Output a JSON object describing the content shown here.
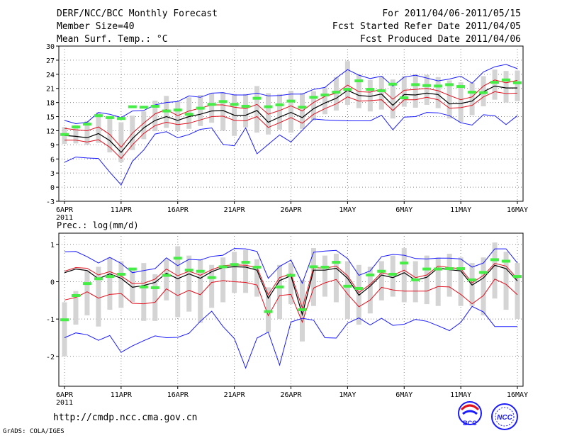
{
  "header": {
    "title": "DERF/NCC/BCC Monthly Forecast",
    "member": "Member Size=40",
    "variable": "Mean Surf. Temp.: °C",
    "period": "For 2011/04/06-2011/05/15",
    "started": "Fcst Started Refer Date 2011/04/05",
    "produced": "Fcst Produced Date 2011/04/06"
  },
  "footer": {
    "url": "http://cmdp.ncc.cma.gov.cn",
    "grads": "GrADS: COLA/IGES",
    "logo_bcc": "BCC",
    "logo_ncc": "NCC"
  },
  "colors": {
    "max": "#1a1aff",
    "min": "#1a1aff",
    "upper": "#e0101e",
    "lower": "#e0101e",
    "mean": "#000000",
    "box": "#d4d4d4",
    "obs": "#44ee44"
  },
  "chart_data": [
    {
      "type": "line",
      "title": "Mean Surf. Temp.: °C",
      "ylim": [
        -3,
        30
      ],
      "yticks": [
        -3,
        0,
        3,
        6,
        9,
        12,
        15,
        18,
        21,
        24,
        27,
        30
      ],
      "xticks": [
        {
          "day": 1,
          "label": "6APR",
          "sub": "2011"
        },
        {
          "day": 6,
          "label": "11APR"
        },
        {
          "day": 11,
          "label": "16APR"
        },
        {
          "day": 16,
          "label": "21APR"
        },
        {
          "day": 21,
          "label": "26APR"
        },
        {
          "day": 26,
          "label": "1MAY"
        },
        {
          "day": 31,
          "label": "6MAY"
        },
        {
          "day": 36,
          "label": "11MAY"
        },
        {
          "day": 41,
          "label": "16MAY"
        }
      ],
      "series": [
        {
          "name": "max",
          "values": [
            14.2,
            13.5,
            13.8,
            15.9,
            15.5,
            14.8,
            16.2,
            16.3,
            17.5,
            18.0,
            18.2,
            19.4,
            19.1,
            20.0,
            20.1,
            19.6,
            19.6,
            20.0,
            19.4,
            19.5,
            19.8,
            19.8,
            20.8,
            21.2,
            23.2,
            25.0,
            23.8,
            23.1,
            23.6,
            21.5,
            23.4,
            23.8,
            23.2,
            22.6,
            23.0,
            23.6,
            22.1,
            24.5,
            25.6,
            26.1,
            25.2
          ]
        },
        {
          "name": "upper",
          "values": [
            12.5,
            12.2,
            12.0,
            12.8,
            11.2,
            8.5,
            11.5,
            13.6,
            15.6,
            16.5,
            15.2,
            16.2,
            16.8,
            17.5,
            17.5,
            17.0,
            16.7,
            17.6,
            15.5,
            16.3,
            17.3,
            16.2,
            18.0,
            19.3,
            20.0,
            21.7,
            20.3,
            20.2,
            20.8,
            18.7,
            20.6,
            20.8,
            21.0,
            20.5,
            19.5,
            18.6,
            19.2,
            21.5,
            22.8,
            22.2,
            22.7
          ]
        },
        {
          "name": "mean",
          "values": [
            11.0,
            10.8,
            10.5,
            11.4,
            9.9,
            7.4,
            10.3,
            12.6,
            14.2,
            15.0,
            14.2,
            15.0,
            15.5,
            16.2,
            16.3,
            15.3,
            15.3,
            16.3,
            13.8,
            14.9,
            15.9,
            14.8,
            16.7,
            17.9,
            18.9,
            20.6,
            19.5,
            19.3,
            19.8,
            17.4,
            19.7,
            19.6,
            20.0,
            19.7,
            17.7,
            17.8,
            18.3,
            20.3,
            21.5,
            21.1,
            21.1
          ]
        },
        {
          "name": "lower",
          "values": [
            10.0,
            10.0,
            9.6,
            10.1,
            8.5,
            6.1,
            9.0,
            11.4,
            13.1,
            13.8,
            13.3,
            13.6,
            14.3,
            15.0,
            15.1,
            14.2,
            14.1,
            15.0,
            12.7,
            13.7,
            14.8,
            13.6,
            15.5,
            16.7,
            17.7,
            19.2,
            18.3,
            18.4,
            18.6,
            16.3,
            18.6,
            18.6,
            19.1,
            18.6,
            16.8,
            16.9,
            17.4,
            19.2,
            20.3,
            19.9,
            20.0
          ]
        },
        {
          "name": "min",
          "values": [
            5.3,
            6.4,
            6.2,
            6.1,
            3.2,
            0.5,
            5.5,
            7.9,
            11.3,
            11.8,
            10.5,
            11.2,
            12.3,
            12.6,
            9.1,
            8.8,
            12.6,
            7.1,
            9.1,
            11.1,
            9.6,
            12.1,
            14.5,
            14.3,
            14.2,
            14.1,
            14.1,
            14.1,
            15.3,
            12.2,
            14.9,
            15.0,
            15.9,
            15.8,
            15.2,
            13.7,
            13.2,
            15.4,
            15.2,
            13.3,
            15.2
          ]
        },
        {
          "name": "obs",
          "values": [
            11.2,
            12.8,
            13.4,
            15.2,
            14.8,
            14.6,
            17.1,
            17.0,
            17.2,
            16.2,
            16.4,
            15.5,
            16.8,
            17.6,
            18.2,
            17.6,
            17.2,
            18.9,
            17.1,
            17.5,
            18.3,
            17.0,
            19.1,
            19.6,
            20.2,
            20.8,
            22.6,
            20.8,
            20.5,
            21.9,
            19.0,
            21.8,
            21.6,
            21.5,
            21.8,
            21.4,
            20.2,
            20.1,
            22.3,
            22.8,
            22.2
          ]
        }
      ],
      "boxes": {
        "lo": [
          9.2,
          9.3,
          9.0,
          9.4,
          7.4,
          5.3,
          7.9,
          10.2,
          11.9,
          12.6,
          11.9,
          12.4,
          13.0,
          13.7,
          12.0,
          10.9,
          12.7,
          11.6,
          11.2,
          12.2,
          11.6,
          12.4,
          14.2,
          15.5,
          16.3,
          17.5,
          16.8,
          16.1,
          16.5,
          14.6,
          17.1,
          16.9,
          17.5,
          16.8,
          14.6,
          13.8,
          15.3,
          17.2,
          18.6,
          18.0,
          18.3
        ],
        "hi": [
          12.8,
          13.2,
          14.1,
          15.9,
          15.1,
          13.8,
          15.2,
          16.1,
          18.4,
          19.4,
          18.2,
          19.1,
          19.6,
          20.0,
          20.2,
          19.8,
          19.8,
          21.5,
          20.0,
          19.8,
          20.5,
          20.0,
          20.4,
          21.2,
          23.4,
          26.8,
          24.0,
          22.8,
          23.6,
          22.9,
          23.6,
          24.0,
          23.9,
          23.4,
          22.7,
          22.3,
          22.2,
          23.6,
          25.0,
          24.7,
          24.8
        ]
      }
    },
    {
      "type": "line",
      "title": "Prec.: log(mm/d)",
      "ylim": [
        -2.8,
        1.3
      ],
      "yticks": [
        -2,
        -1,
        0,
        1
      ],
      "xticks": [
        {
          "day": 1,
          "label": "6APR",
          "sub": "2011"
        },
        {
          "day": 6,
          "label": "11APR"
        },
        {
          "day": 11,
          "label": "16APR"
        },
        {
          "day": 16,
          "label": "21APR"
        },
        {
          "day": 21,
          "label": "26APR"
        },
        {
          "day": 26,
          "label": "1MAY"
        },
        {
          "day": 31,
          "label": "6MAY"
        },
        {
          "day": 36,
          "label": "11MAY"
        },
        {
          "day": 41,
          "label": "16MAY"
        }
      ],
      "series": [
        {
          "name": "max",
          "values": [
            0.8,
            0.81,
            0.67,
            0.5,
            0.65,
            0.49,
            0.24,
            0.3,
            0.35,
            0.64,
            0.43,
            0.6,
            0.58,
            0.68,
            0.71,
            0.89,
            0.88,
            0.81,
            0.09,
            0.41,
            0.58,
            -0.04,
            0.79,
            0.82,
            0.84,
            0.62,
            0.17,
            0.29,
            0.67,
            0.73,
            0.71,
            0.62,
            0.61,
            0.63,
            0.63,
            0.61,
            0.39,
            0.5,
            0.88,
            0.88,
            0.5
          ]
        },
        {
          "name": "upper",
          "values": [
            0.28,
            0.38,
            0.36,
            0.18,
            0.27,
            0.15,
            -0.05,
            -0.04,
            0.07,
            0.34,
            0.16,
            0.28,
            0.17,
            0.32,
            0.43,
            0.45,
            0.44,
            0.38,
            -0.35,
            0.11,
            0.21,
            -0.7,
            0.38,
            0.36,
            0.42,
            0.16,
            -0.29,
            -0.07,
            0.24,
            0.17,
            0.31,
            0.11,
            0.18,
            0.42,
            0.38,
            0.35,
            -0.03,
            0.17,
            0.49,
            0.42,
            0.08
          ]
        },
        {
          "name": "mean",
          "values": [
            0.24,
            0.34,
            0.3,
            0.08,
            0.21,
            0.09,
            -0.15,
            -0.1,
            -0.02,
            0.23,
            0.08,
            0.21,
            0.09,
            0.27,
            0.38,
            0.4,
            0.39,
            0.31,
            -0.44,
            0.03,
            0.16,
            -0.88,
            0.31,
            0.31,
            0.36,
            0.09,
            -0.36,
            -0.12,
            0.18,
            0.11,
            0.24,
            0.04,
            0.12,
            0.37,
            0.32,
            0.29,
            -0.09,
            0.1,
            0.44,
            0.35,
            0.02
          ]
        },
        {
          "name": "lower",
          "values": [
            -0.49,
            -0.42,
            -0.27,
            -0.44,
            -0.34,
            -0.32,
            -0.58,
            -0.59,
            -0.55,
            -0.19,
            -0.37,
            -0.23,
            -0.35,
            -0.02,
            0.03,
            0.0,
            -0.02,
            -0.09,
            -0.91,
            -0.37,
            -0.34,
            -1.08,
            -0.17,
            -0.03,
            0.06,
            -0.33,
            -0.67,
            -0.49,
            -0.15,
            -0.22,
            -0.25,
            -0.25,
            -0.25,
            -0.13,
            -0.14,
            -0.34,
            -0.59,
            -0.37,
            0.07,
            -0.07,
            -0.35
          ]
        },
        {
          "name": "min",
          "values": [
            -1.5,
            -1.37,
            -1.42,
            -1.57,
            -1.44,
            -1.89,
            -1.72,
            -1.58,
            -1.45,
            -1.5,
            -1.49,
            -1.38,
            -1.06,
            -0.79,
            -1.2,
            -1.52,
            -2.31,
            -1.51,
            -1.35,
            -2.23,
            -1.08,
            -0.98,
            -1.03,
            -1.5,
            -1.51,
            -1.11,
            -0.97,
            -1.16,
            -0.98,
            -1.17,
            -1.14,
            -1.01,
            -1.06,
            -1.18,
            -1.31,
            -1.09,
            -0.66,
            -0.81,
            -1.2,
            -1.2,
            -1.2
          ]
        },
        {
          "name": "obs",
          "values": [
            -1.02,
            -0.37,
            -0.05,
            0.08,
            0.14,
            0.2,
            0.34,
            -0.14,
            -0.16,
            0.17,
            0.63,
            0.31,
            0.28,
            0.11,
            0.4,
            0.46,
            0.52,
            0.39,
            -0.8,
            -0.14,
            0.17,
            -0.75,
            0.4,
            0.39,
            0.52,
            -0.12,
            -0.18,
            0.18,
            0.28,
            0.2,
            0.5,
            0.05,
            0.34,
            0.34,
            0.35,
            0.35,
            0.05,
            0.25,
            0.59,
            0.55,
            0.14
          ]
        }
      ],
      "boxes": {
        "lo": [
          -2.0,
          -1.15,
          -0.9,
          -1.2,
          -0.75,
          -0.7,
          -0.55,
          -1.05,
          -1.05,
          -0.5,
          -0.95,
          -0.8,
          -1.1,
          -0.7,
          -0.55,
          -0.3,
          -0.3,
          -0.4,
          -1.35,
          -1.0,
          -0.6,
          -1.6,
          -0.65,
          -0.4,
          -0.55,
          -1.0,
          -1.15,
          -0.85,
          -0.5,
          -0.4,
          -0.55,
          -0.55,
          -0.6,
          -0.65,
          -0.4,
          -0.65,
          -0.65,
          -0.9,
          -0.45,
          -0.75,
          -1.0
        ],
        "hi": [
          -0.55,
          -0.25,
          0.3,
          0.4,
          0.65,
          0.55,
          0.3,
          0.5,
          0.2,
          0.6,
          0.95,
          0.7,
          0.6,
          0.45,
          0.65,
          0.8,
          0.85,
          0.6,
          -0.15,
          0.45,
          0.5,
          0.05,
          0.9,
          0.7,
          0.75,
          0.55,
          0.45,
          0.4,
          0.55,
          0.7,
          0.9,
          0.55,
          0.7,
          0.65,
          0.75,
          0.65,
          0.5,
          0.65,
          1.05,
          0.8,
          0.5
        ]
      }
    }
  ]
}
